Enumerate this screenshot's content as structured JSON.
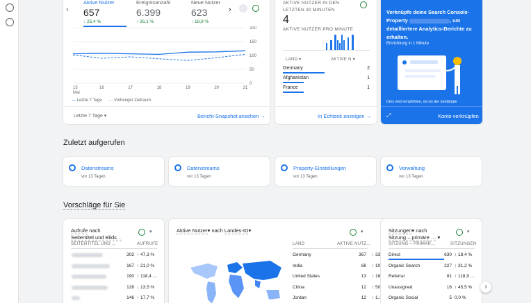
{
  "rail": {
    "icons": [
      "insights-icon",
      "search-settings-icon"
    ]
  },
  "overview": {
    "metrics": [
      {
        "label": "Aktive Nutzer",
        "value": "657",
        "change": "↑ 25,4 %"
      },
      {
        "label": "Ereignisanzahl",
        "value": "6.399",
        "change": "↑ 26,1 %"
      },
      {
        "label": "Neue Nutzer",
        "value": "623",
        "change": "↑ 18,9 %"
      }
    ],
    "y_ticks": [
      "200",
      "150",
      "100",
      "50",
      "0"
    ],
    "x_ticks": [
      "15",
      "16",
      "17",
      "18",
      "19",
      "20",
      "21"
    ],
    "x_month": "Mai",
    "legend_current": "Letzte 7 Tage",
    "legend_previous": "Vorheriger Zeitraum",
    "date_range": "Letzte 7 Tage",
    "snapshot_link": "Bericht-Snapshot ansehen"
  },
  "chart_data": {
    "type": "line",
    "x": [
      "15 Mai",
      "16",
      "17",
      "18",
      "19",
      "20",
      "21"
    ],
    "series": [
      {
        "name": "Letzte 7 Tage",
        "values": [
          106,
          108,
          106,
          104,
          112,
          113,
          117
        ]
      },
      {
        "name": "Vorheriger Zeitraum",
        "values": [
          102,
          90,
          95,
          88,
          82,
          92,
          104
        ]
      }
    ],
    "ylim": [
      0,
      200
    ]
  },
  "realtime": {
    "title": "AKTIVE NUTZER IN DEN LETZTEN 30 MINUTEN",
    "value": "4",
    "subtitle": "AKTIVE NUTZER PRO MINUTE",
    "col_country": "LAND",
    "col_users": "AKTIVE N",
    "rows": [
      {
        "country": "Germany",
        "value": "2",
        "bar": 1.0
      },
      {
        "country": "Afghanistan",
        "value": "1",
        "bar": 0.5
      },
      {
        "country": "France",
        "value": "1",
        "bar": 0.5
      }
    ],
    "link": "In Echtzeit anzeigen"
  },
  "promo": {
    "text_1": "Verknüpfe deine Search Console-Property",
    "text_2": ", um detailliertere Analytics-Berichte zu erhalten.",
    "setup": "Einrichtung in 1 Minute",
    "footnote": "Dies wird empfohlen, da du der bestätigte",
    "button": "Konto verknüpfen"
  },
  "recent": {
    "title": "Zuletzt aufgerufen",
    "items": [
      {
        "label": "Datenstreams",
        "sub": "vor 13 Tagen"
      },
      {
        "label": "Datenstreams",
        "sub": "vor 13 Tagen"
      },
      {
        "label": "Property-Einstellungen",
        "sub": "vor 13 Tagen"
      },
      {
        "label": "Verwaltung",
        "sub": "vor 13 Tagen"
      }
    ]
  },
  "suggestions": {
    "title": "Vorschläge für Sie",
    "card1": {
      "title_1": "Aufrufe",
      "title_2": "nach",
      "title_3": "Seitentitel und Bilds…",
      "col_1": "SEITENTITEL UND …",
      "col_2": "AUFRUFE",
      "rows": [
        {
          "value": "302",
          "change": "↑ 47,3 %",
          "dir": "up"
        },
        {
          "value": "167",
          "change": "↑ 21,0 %",
          "dir": "up"
        },
        {
          "value": "190",
          "change": "↑ 118,4 …",
          "dir": "up"
        },
        {
          "value": "128",
          "change": "↓ 13,5 %",
          "dir": "down"
        },
        {
          "value": "146",
          "change": "↑ 17,7 %",
          "dir": "up"
        }
      ]
    },
    "card2": {
      "title_1": "Aktive Nutzer",
      "title_2": "nach",
      "title_3": "Landes-ID",
      "col_1": "LAND",
      "col_2": "AKTIVE NUTZ…",
      "rows": [
        {
          "country": "Germany",
          "value": "367",
          "change": "↑ 33,0 %"
        },
        {
          "country": "India",
          "value": "68",
          "change": "↑ 100…"
        },
        {
          "country": "United States",
          "value": "13",
          "change": "↑ 18,2 %"
        },
        {
          "country": "China",
          "value": "12",
          "change": "↑ 50,0 %"
        },
        {
          "country": "Jordan",
          "value": "12",
          "change": "↑ 1.10…"
        }
      ]
    },
    "card3": {
      "title_1": "Sitzungen",
      "title_2": "nach",
      "title_3": "Sitzung – primäre …",
      "col_1": "SITZUNG – PRIMÄR…",
      "col_2": "SITZUNGEN",
      "rows": [
        {
          "label": "Direct",
          "value": "630",
          "change": "↑ 18,4 %"
        },
        {
          "label": "Organic Search",
          "value": "227",
          "change": "↑ 31,2 %"
        },
        {
          "label": "Referral",
          "value": "81",
          "change": "↑ 118,9 …"
        },
        {
          "label": "Unassigned",
          "value": "16",
          "change": "↑ 45,5 %"
        },
        {
          "label": "Organic Social",
          "value": "5",
          "change": "0,0 %"
        }
      ]
    }
  }
}
